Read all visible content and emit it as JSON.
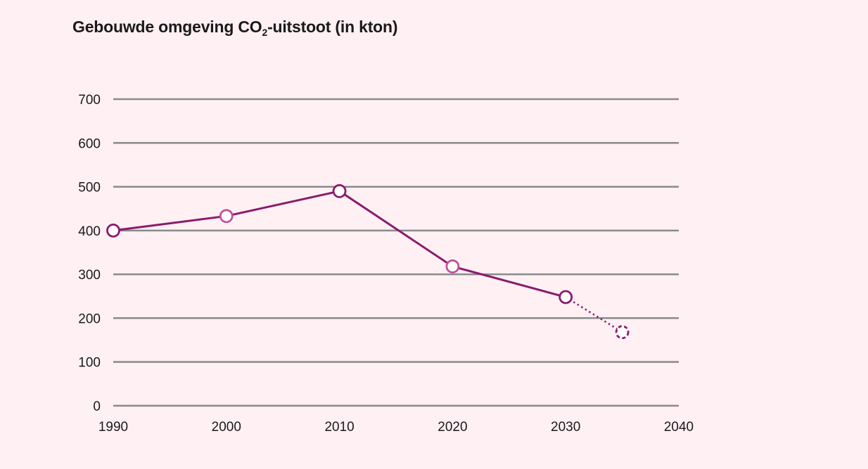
{
  "title": {
    "main": "Gebouwde omgeving CO",
    "subscript": "2",
    "suffix": "-uitstoot (in kton)"
  },
  "chart_data": {
    "type": "line",
    "title": "Gebouwde omgeving CO2-uitstoot (in kton)",
    "xlabel": "",
    "ylabel": "",
    "xlim": [
      1990,
      2040
    ],
    "ylim": [
      0,
      700
    ],
    "x_ticks": [
      "1990",
      "2000",
      "2010",
      "2020",
      "2030",
      "2040"
    ],
    "y_ticks": [
      "0",
      "100",
      "200",
      "300",
      "400",
      "500",
      "600",
      "700"
    ],
    "grid": "horizontal",
    "series": [
      {
        "values_x": [
          1990,
          2000,
          2010,
          2020,
          2030
        ],
        "values_y": [
          400,
          433,
          490,
          318,
          248
        ],
        "style": "solid"
      },
      {
        "values_x": [
          2030,
          2035
        ],
        "values_y": [
          248,
          168
        ],
        "style": "dotted"
      }
    ],
    "points": [
      {
        "x": 1990,
        "y": 400,
        "color": "#8b1a6b",
        "style": "solid"
      },
      {
        "x": 2000,
        "y": 433,
        "color": "#c0519a",
        "style": "solid"
      },
      {
        "x": 2010,
        "y": 490,
        "color": "#8b1a6b",
        "style": "solid"
      },
      {
        "x": 2020,
        "y": 318,
        "color": "#c0519a",
        "style": "solid"
      },
      {
        "x": 2030,
        "y": 248,
        "color": "#8b1a6b",
        "style": "solid"
      },
      {
        "x": 2035,
        "y": 168,
        "color": "#8b1a6b",
        "style": "dashed"
      }
    ],
    "colors": {
      "line": "#8b1a6b",
      "grid": "#8a8a8a",
      "marker_fill": "#ffffff"
    }
  }
}
